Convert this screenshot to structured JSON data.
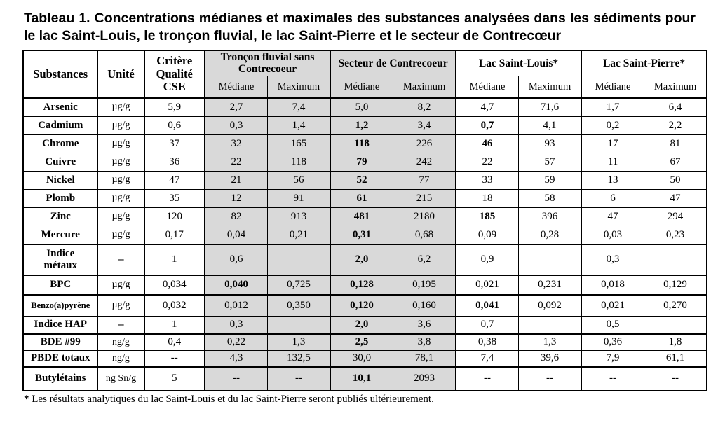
{
  "title": "Tableau 1. Concentrations médianes et maximales des substances analysées dans les sédiments pour le lac Saint-Louis, le tronçon fluvial, le lac Saint-Pierre et le secteur de Contrecœur",
  "footnote": {
    "marker": "*",
    "text": "Les résultats analytiques du lac Saint-Louis et du lac Saint-Pierre seront publiés ultérieurement."
  },
  "colors": {
    "shaded_column": "#d9d9d9",
    "border": "#000000",
    "text": "#000000",
    "background": "#ffffff"
  },
  "table": {
    "col_headers": {
      "substances": "Substances",
      "unit": "Unité",
      "criterion": "Critère Qualité CSE",
      "median": "Médiane",
      "maximum": "Maximum"
    },
    "groups": [
      {
        "label": "Tronçon fluvial sans Contrecoeur",
        "shaded": true
      },
      {
        "label": "Secteur de Contrecoeur",
        "shaded": true
      },
      {
        "label": "Lac Saint-Louis*",
        "shaded": false
      },
      {
        "label": "Lac Saint-Pierre*",
        "shaded": false
      }
    ],
    "row_groups": [
      {
        "name": "metals",
        "rows": [
          {
            "substance": "Arsenic",
            "unit": "µg/g",
            "criterion": "5,9",
            "cells": [
              "2,7",
              "7,4",
              "5,0",
              "8,2",
              "4,7",
              "71,6",
              "1,7",
              "6,4"
            ],
            "bold": [
              0,
              0,
              0,
              0,
              0,
              0,
              0,
              0
            ]
          },
          {
            "substance": "Cadmium",
            "unit": "µg/g",
            "criterion": "0,6",
            "cells": [
              "0,3",
              "1,4",
              "1,2",
              "3,4",
              "0,7",
              "4,1",
              "0,2",
              "2,2"
            ],
            "bold": [
              0,
              0,
              1,
              0,
              1,
              0,
              0,
              0
            ]
          },
          {
            "substance": "Chrome",
            "unit": "µg/g",
            "criterion": "37",
            "cells": [
              "32",
              "165",
              "118",
              "226",
              "46",
              "93",
              "17",
              "81"
            ],
            "bold": [
              0,
              0,
              1,
              0,
              1,
              0,
              0,
              0
            ]
          },
          {
            "substance": "Cuivre",
            "unit": "µg/g",
            "criterion": "36",
            "cells": [
              "22",
              "118",
              "79",
              "242",
              "22",
              "57",
              "11",
              "67"
            ],
            "bold": [
              0,
              0,
              1,
              0,
              0,
              0,
              0,
              0
            ]
          },
          {
            "substance": "Nickel",
            "unit": "µg/g",
            "criterion": "47",
            "cells": [
              "21",
              "56",
              "52",
              "77",
              "33",
              "59",
              "13",
              "50"
            ],
            "bold": [
              0,
              0,
              1,
              0,
              0,
              0,
              0,
              0
            ]
          },
          {
            "substance": "Plomb",
            "unit": "µg/g",
            "criterion": "35",
            "cells": [
              "12",
              "91",
              "61",
              "215",
              "18",
              "58",
              "6",
              "47"
            ],
            "bold": [
              0,
              0,
              1,
              0,
              0,
              0,
              0,
              0
            ]
          },
          {
            "substance": "Zinc",
            "unit": "µg/g",
            "criterion": "120",
            "cells": [
              "82",
              "913",
              "481",
              "2180",
              "185",
              "396",
              "47",
              "294"
            ],
            "bold": [
              0,
              0,
              1,
              0,
              1,
              0,
              0,
              0
            ]
          },
          {
            "substance": "Mercure",
            "unit": "µg/g",
            "criterion": "0,17",
            "cells": [
              "0,04",
              "0,21",
              "0,31",
              "0,68",
              "0,09",
              "0,28",
              "0,03",
              "0,23"
            ],
            "bold": [
              0,
              0,
              1,
              0,
              0,
              0,
              0,
              0
            ]
          }
        ]
      },
      {
        "name": "indice",
        "rows": [
          {
            "substance": "Indice métaux",
            "unit": "--",
            "criterion": "1",
            "cells": [
              "0,6",
              "",
              "2,0",
              "6,2",
              "0,9",
              "",
              "0,3",
              ""
            ],
            "bold": [
              0,
              0,
              1,
              0,
              0,
              0,
              0,
              0
            ]
          }
        ]
      },
      {
        "name": "bpc",
        "rows": [
          {
            "substance": "BPC",
            "unit": "µg/g",
            "criterion": "0,034",
            "cells": [
              "0,040",
              "0,725",
              "0,128",
              "0,195",
              "0,021",
              "0,231",
              "0,018",
              "0,129"
            ],
            "bold": [
              1,
              0,
              1,
              0,
              0,
              0,
              0,
              0
            ]
          }
        ]
      },
      {
        "name": "hap",
        "rows": [
          {
            "substance": "Benzo(a)pyrène",
            "unit": "µg/g",
            "criterion": "0,032",
            "cells": [
              "0,012",
              "0,350",
              "0,120",
              "0,160",
              "0,041",
              "0,092",
              "0,021",
              "0,270"
            ],
            "bold": [
              0,
              0,
              1,
              0,
              1,
              0,
              0,
              0
            ]
          },
          {
            "substance": "Indice HAP",
            "unit": "--",
            "criterion": "1",
            "cells": [
              "0,3",
              "",
              "2,0",
              "3,6",
              "0,7",
              "",
              "0,5",
              ""
            ],
            "bold": [
              0,
              0,
              1,
              0,
              0,
              0,
              0,
              0
            ]
          }
        ]
      },
      {
        "name": "bde",
        "rows": [
          {
            "substance": "BDE #99",
            "unit": "ng/g",
            "criterion": "0,4",
            "cells": [
              "0,22",
              "1,3",
              "2,5",
              "3,8",
              "0,38",
              "1,3",
              "0,36",
              "1,8"
            ],
            "bold": [
              0,
              0,
              1,
              0,
              0,
              0,
              0,
              0
            ]
          },
          {
            "substance": "PBDE totaux",
            "unit": "ng/g",
            "criterion": "--",
            "cells": [
              "4,3",
              "132,5",
              "30,0",
              "78,1",
              "7,4",
              "39,6",
              "7,9",
              "61,1"
            ],
            "bold": [
              0,
              0,
              0,
              0,
              0,
              0,
              0,
              0
            ]
          }
        ]
      },
      {
        "name": "butyl",
        "rows": [
          {
            "substance": "Butylétains",
            "unit": "ng Sn/g",
            "criterion": "5",
            "cells": [
              "--",
              "--",
              "10,1",
              "2093",
              "--",
              "--",
              "--",
              "--"
            ],
            "bold": [
              0,
              0,
              1,
              0,
              0,
              0,
              0,
              0
            ]
          }
        ]
      }
    ]
  }
}
